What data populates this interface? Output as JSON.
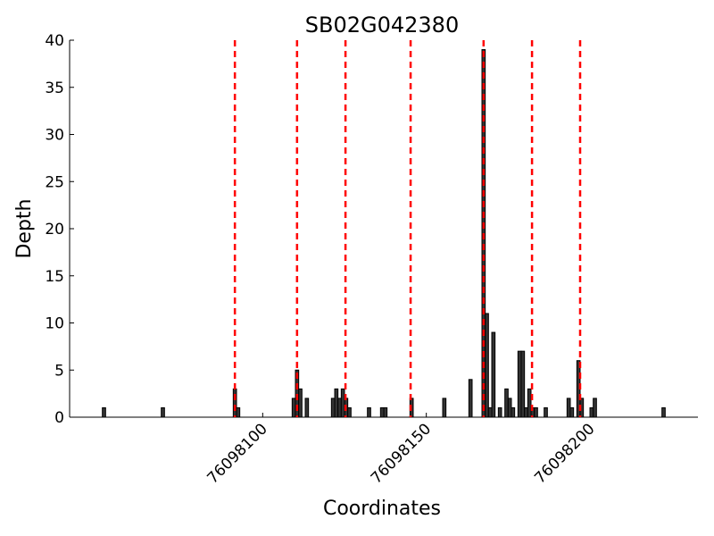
{
  "chart_data": {
    "type": "bar",
    "title": "SB02G042380",
    "xlabel": "Coordinates",
    "ylabel": "Depth",
    "x": [
      76098051,
      76098069,
      76098091,
      76098092,
      76098109,
      76098110,
      76098111,
      76098113,
      76098121,
      76098122,
      76098123,
      76098124,
      76098125,
      76098126,
      76098132,
      76098136,
      76098137,
      76098145,
      76098155,
      76098163,
      76098167,
      76098168,
      76098169,
      76098170,
      76098172,
      76098174,
      76098175,
      76098176,
      76098178,
      76098179,
      76098180,
      76098181,
      76098182,
      76098183,
      76098186,
      76098193,
      76098194,
      76098196,
      76098197,
      76098200,
      76098201,
      76098222
    ],
    "values": [
      1,
      1,
      3,
      1,
      2,
      5,
      3,
      2,
      2,
      3,
      2,
      3,
      2,
      1,
      1,
      1,
      1,
      2,
      2,
      4,
      39,
      11,
      1,
      9,
      1,
      3,
      2,
      1,
      7,
      7,
      1,
      3,
      1,
      1,
      1,
      2,
      1,
      6,
      2,
      1,
      2,
      1
    ],
    "color": "#333333",
    "vlines": [
      76098091.5,
      76098110.5,
      76098125.3,
      76098145.2,
      76098167.5,
      76098182.3,
      76098197
    ],
    "vline_color": "#ff0000",
    "xlim": [
      76098041,
      76098233
    ],
    "ylim": [
      0,
      40
    ],
    "xticks": [
      76098100,
      76098150,
      76098200
    ],
    "yticks": [
      0,
      5,
      10,
      15,
      20,
      25,
      30,
      35,
      40
    ],
    "grid": false
  }
}
